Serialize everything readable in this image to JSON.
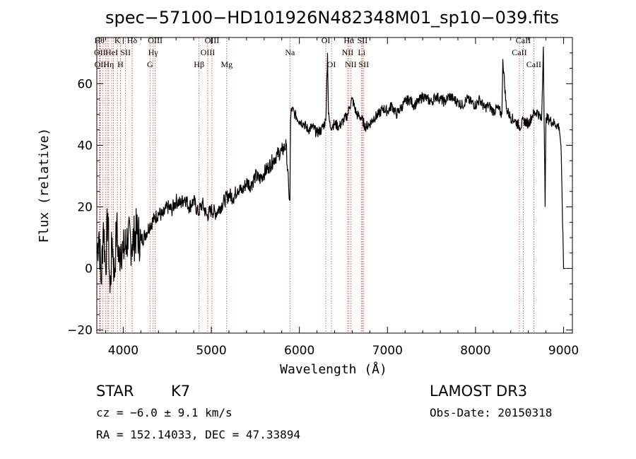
{
  "chart_data": {
    "type": "line",
    "title": "spec−57100−HD101926N482348M01_sp10−039.fits",
    "xlabel": "Wavelength (Å)",
    "ylabel": "Flux (relative)",
    "xlim": [
      3700,
      9100
    ],
    "ylim": [
      -21,
      75
    ],
    "xticks": [
      4000,
      5000,
      6000,
      7000,
      8000,
      9000
    ],
    "yticks": [
      -20,
      0,
      20,
      40,
      60
    ],
    "xtick_labels": [
      "4000",
      "5000",
      "6000",
      "7000",
      "8000",
      "9000"
    ],
    "ytick_labels": [
      "−20",
      "0",
      "20",
      "40",
      "60"
    ],
    "series": [
      {
        "name": "flux",
        "color": "#000000",
        "x": [
          3700,
          3725,
          3750,
          3775,
          3800,
          3825,
          3850,
          3875,
          3900,
          3925,
          3950,
          3975,
          4000,
          4050,
          4100,
          4150,
          4200,
          4250,
          4300,
          4350,
          4400,
          4450,
          4500,
          4550,
          4600,
          4650,
          4700,
          4750,
          4800,
          4850,
          4900,
          4950,
          5000,
          5050,
          5100,
          5150,
          5200,
          5250,
          5300,
          5350,
          5400,
          5450,
          5500,
          5550,
          5600,
          5650,
          5700,
          5750,
          5800,
          5850,
          5880,
          5893,
          5900,
          5910,
          5950,
          6000,
          6050,
          6100,
          6150,
          6200,
          6250,
          6300,
          6320,
          6330,
          6350,
          6400,
          6450,
          6500,
          6550,
          6563,
          6600,
          6650,
          6700,
          6750,
          6800,
          6850,
          6900,
          6950,
          7000,
          7050,
          7100,
          7150,
          7200,
          7250,
          7300,
          7350,
          7400,
          7450,
          7500,
          7550,
          7600,
          7650,
          7700,
          7750,
          7800,
          7850,
          7900,
          7950,
          8000,
          8050,
          8100,
          8150,
          8200,
          8250,
          8300,
          8310,
          8350,
          8400,
          8450,
          8500,
          8550,
          8600,
          8650,
          8700,
          8750,
          8770,
          8790,
          8800,
          8850,
          8900,
          8950,
          8970,
          9000
        ],
        "y": [
          5,
          12,
          -5,
          15,
          0,
          18,
          -8,
          10,
          -3,
          14,
          2,
          8,
          5,
          10,
          8,
          12,
          9,
          11,
          14,
          16,
          18,
          17,
          20,
          19,
          22,
          21,
          23,
          20,
          22,
          18,
          21,
          17,
          19,
          18,
          20,
          22,
          24,
          23,
          26,
          25,
          28,
          27,
          30,
          29,
          31,
          33,
          35,
          37,
          38,
          40,
          25,
          22,
          48,
          52,
          50,
          48,
          47,
          45,
          46,
          44,
          45,
          48,
          70,
          50,
          46,
          47,
          46,
          48,
          50,
          52,
          55,
          50,
          49,
          46,
          47,
          49,
          50,
          52,
          51,
          53,
          50,
          52,
          54,
          55,
          53,
          54,
          56,
          55,
          54,
          56,
          55,
          54,
          56,
          55,
          54,
          53,
          55,
          54,
          53,
          55,
          52,
          53,
          51,
          52,
          50,
          68,
          52,
          49,
          48,
          46,
          48,
          47,
          50,
          51,
          48,
          72,
          20,
          49,
          48,
          47,
          46,
          40,
          0
        ]
      }
    ],
    "lines": [
      {
        "w": 3730,
        "label": "Hθ",
        "row": 1
      },
      {
        "w": 3735,
        "label": "OII",
        "row": 2
      },
      {
        "w": 3740,
        "label": "OII",
        "row": 3
      },
      {
        "w": 3771,
        "label": "",
        "row": 0
      },
      {
        "w": 3798,
        "label": "",
        "row": 0
      },
      {
        "w": 3820,
        "label": "",
        "row": 0
      },
      {
        "w": 3835,
        "label": "Hη",
        "row": 3
      },
      {
        "w": 3869,
        "label": "HeI",
        "row": 2
      },
      {
        "w": 3889,
        "label": "",
        "row": 0
      },
      {
        "w": 3934,
        "label": "K",
        "row": 1
      },
      {
        "w": 3968,
        "label": "H",
        "row": 3
      },
      {
        "w": 4026,
        "label": "SII",
        "row": 2
      },
      {
        "w": 4101,
        "label": "Hδ",
        "row": 1
      },
      {
        "w": 4102,
        "label": "",
        "row": 0
      },
      {
        "w": 4304,
        "label": "G",
        "row": 3
      },
      {
        "w": 4340,
        "label": "Hγ",
        "row": 2
      },
      {
        "w": 4363,
        "label": "OIII",
        "row": 1
      },
      {
        "w": 4861,
        "label": "Hβ",
        "row": 3
      },
      {
        "w": 4959,
        "label": "OIII",
        "row": 2
      },
      {
        "w": 5007,
        "label": "OIII",
        "row": 1
      },
      {
        "w": 5175,
        "label": "Mg",
        "row": 3
      },
      {
        "w": 5893,
        "label": "Na",
        "row": 2
      },
      {
        "w": 6300,
        "label": "OI",
        "row": 1
      },
      {
        "w": 6364,
        "label": "OI",
        "row": 3
      },
      {
        "w": 6548,
        "label": "NII",
        "row": 2
      },
      {
        "w": 6563,
        "label": "Hα",
        "row": 1
      },
      {
        "w": 6583,
        "label": "NII",
        "row": 3
      },
      {
        "w": 6707,
        "label": "Li",
        "row": 2
      },
      {
        "w": 6716,
        "label": "SII",
        "row": 1
      },
      {
        "w": 6731,
        "label": "SII",
        "row": 3
      },
      {
        "w": 8498,
        "label": "CaII",
        "row": 2
      },
      {
        "w": 8542,
        "label": "CaII",
        "row": 1
      },
      {
        "w": 8662,
        "label": "CaII",
        "row": 3
      }
    ]
  },
  "footer": {
    "object_type": "STAR",
    "subclass": "K7",
    "survey": "LAMOST DR3",
    "cz": "cz = −6.0 ± 9.1 km/s",
    "obs_date": "Obs-Date: 20150318",
    "coords": "RA = 152.14033, DEC =  47.33894"
  }
}
